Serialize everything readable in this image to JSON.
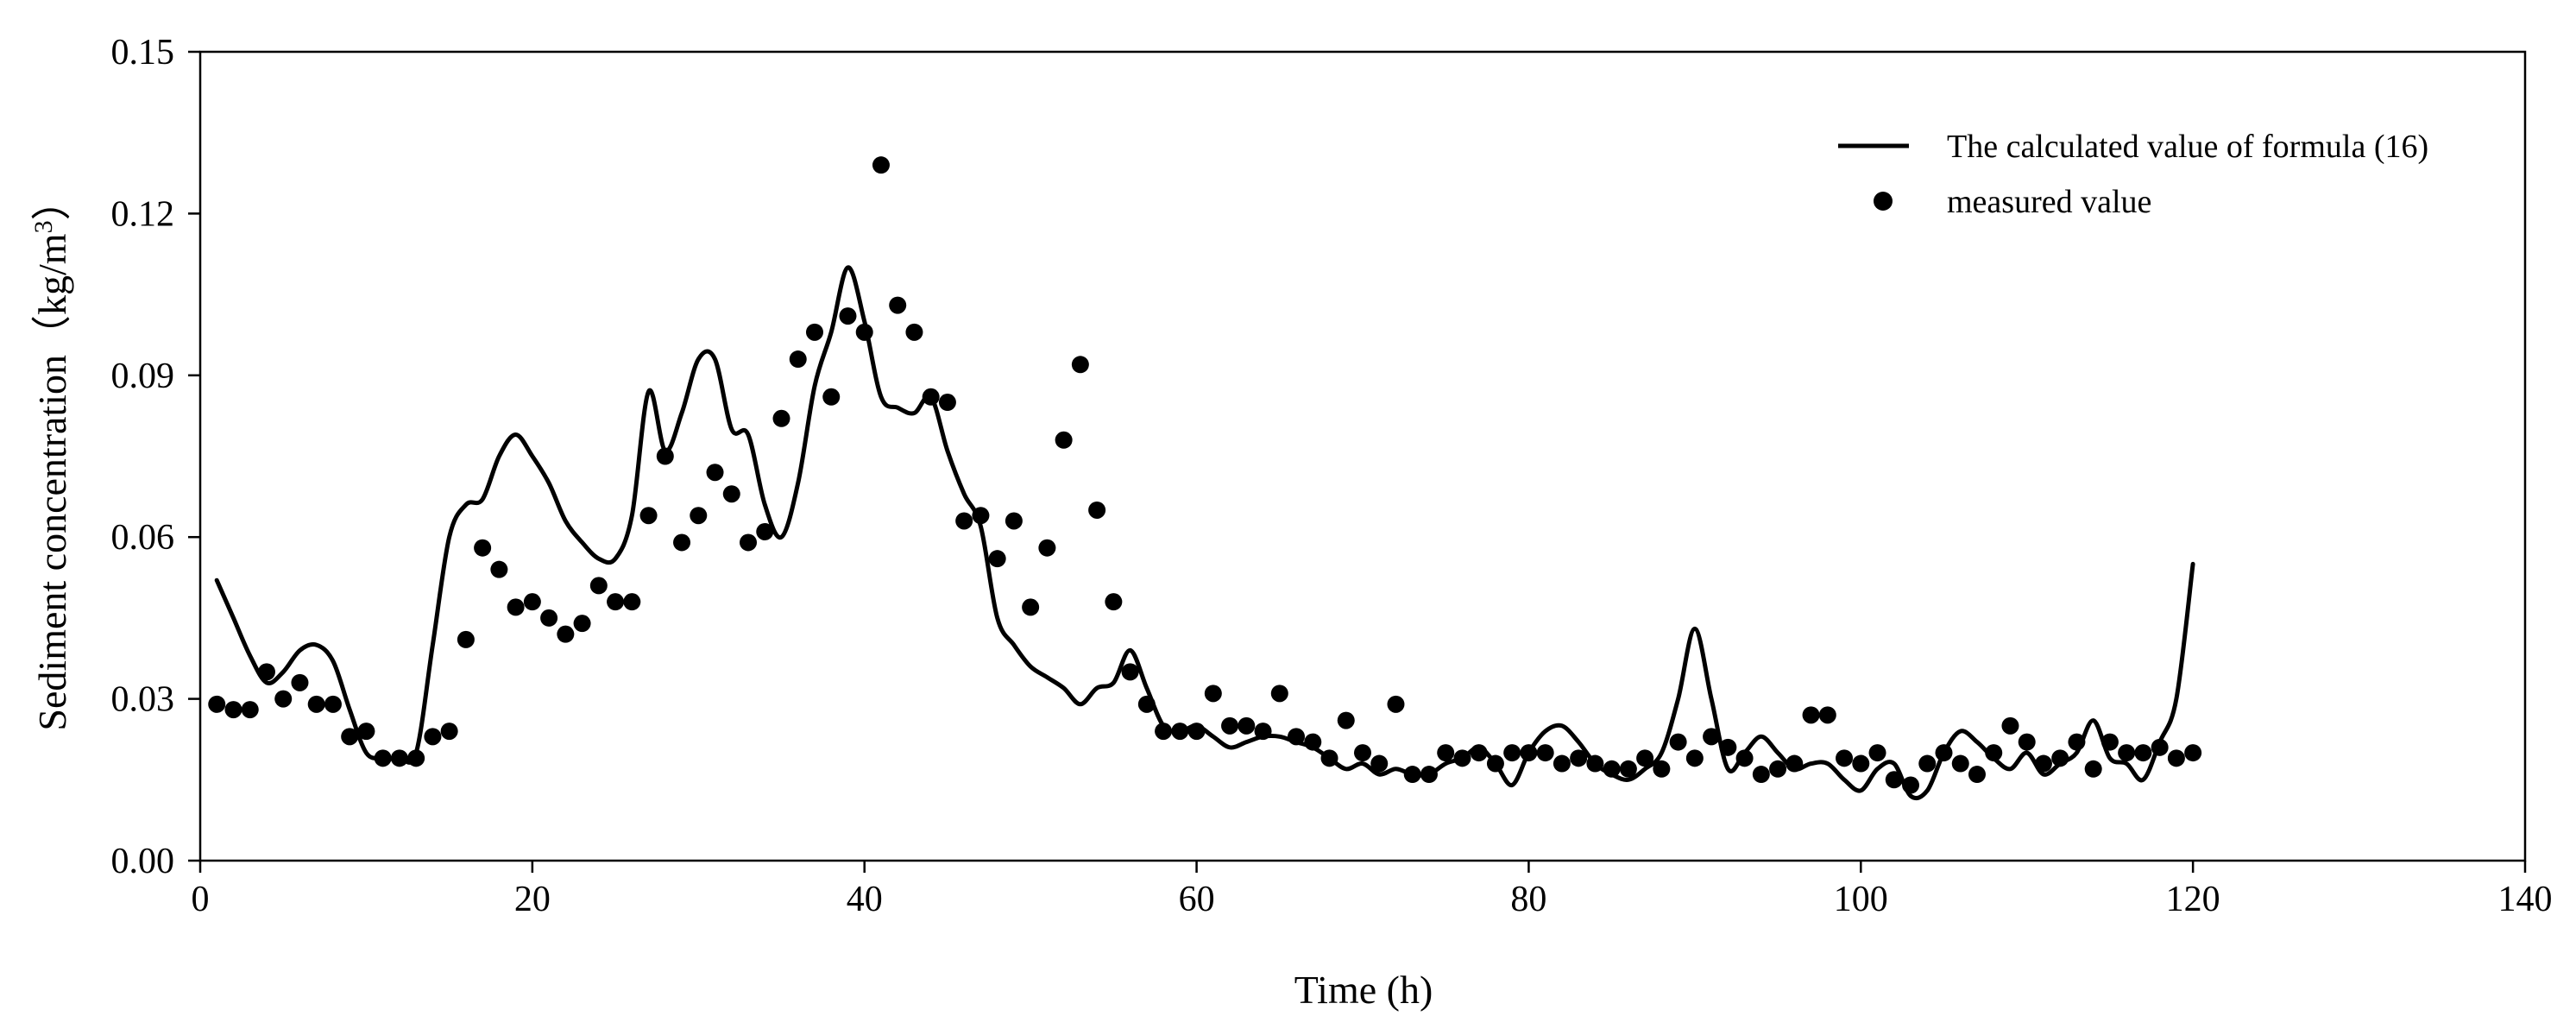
{
  "chart_data": {
    "type": "line",
    "title": "",
    "xlabel": "Time (h)",
    "ylabel": "Sediment concentration",
    "ylabel_unit_prefix": "（kg/m",
    "ylabel_unit_exp": "3",
    "ylabel_unit_suffix": "）",
    "xlim": [
      0,
      140
    ],
    "ylim": [
      0,
      0.15
    ],
    "x_ticks": [
      0,
      20,
      40,
      60,
      80,
      100,
      120,
      140
    ],
    "x_tick_labels": [
      "0",
      "20",
      "40",
      "60",
      "80",
      "100",
      "120",
      "140"
    ],
    "y_ticks": [
      0,
      0.03,
      0.06,
      0.09,
      0.12,
      0.15
    ],
    "y_tick_labels": [
      "0.00",
      "0.03",
      "0.06",
      "0.09",
      "0.12",
      "0.15"
    ],
    "grid": false,
    "legend_position": "top-right",
    "series": [
      {
        "name": "The calculated value of formula (16)",
        "style": "line",
        "color": "#000000",
        "x": [
          1,
          2,
          3,
          4,
          5,
          6,
          7,
          8,
          9,
          10,
          11,
          12,
          13,
          14,
          15,
          16,
          17,
          18,
          19,
          20,
          21,
          22,
          23,
          24,
          25,
          26,
          27,
          28,
          29,
          30,
          31,
          32,
          33,
          34,
          35,
          36,
          37,
          38,
          39,
          40,
          41,
          42,
          43,
          44,
          45,
          46,
          47,
          48,
          49,
          50,
          51,
          52,
          53,
          54,
          55,
          56,
          57,
          58,
          59,
          60,
          61,
          62,
          63,
          64,
          65,
          66,
          67,
          68,
          69,
          70,
          71,
          72,
          73,
          74,
          75,
          76,
          77,
          78,
          79,
          80,
          81,
          82,
          83,
          84,
          85,
          86,
          87,
          88,
          89,
          90,
          91,
          92,
          93,
          94,
          95,
          96,
          97,
          98,
          99,
          100,
          101,
          102,
          103,
          104,
          105,
          106,
          107,
          108,
          109,
          110,
          111,
          112,
          113,
          114,
          115,
          116,
          117,
          118,
          119,
          120
        ],
        "values": [
          0.052,
          0.045,
          0.038,
          0.033,
          0.035,
          0.039,
          0.04,
          0.037,
          0.028,
          0.02,
          0.019,
          0.019,
          0.02,
          0.04,
          0.06,
          0.066,
          0.067,
          0.075,
          0.079,
          0.075,
          0.07,
          0.063,
          0.059,
          0.056,
          0.056,
          0.064,
          0.087,
          0.076,
          0.083,
          0.093,
          0.093,
          0.08,
          0.079,
          0.066,
          0.06,
          0.07,
          0.088,
          0.098,
          0.11,
          0.1,
          0.086,
          0.084,
          0.083,
          0.086,
          0.076,
          0.068,
          0.062,
          0.045,
          0.04,
          0.036,
          0.034,
          0.032,
          0.029,
          0.032,
          0.033,
          0.039,
          0.032,
          0.025,
          0.024,
          0.025,
          0.023,
          0.021,
          0.022,
          0.023,
          0.023,
          0.022,
          0.021,
          0.019,
          0.017,
          0.018,
          0.016,
          0.017,
          0.016,
          0.016,
          0.018,
          0.019,
          0.021,
          0.018,
          0.014,
          0.02,
          0.024,
          0.025,
          0.022,
          0.018,
          0.016,
          0.015,
          0.017,
          0.02,
          0.03,
          0.043,
          0.03,
          0.017,
          0.02,
          0.023,
          0.02,
          0.017,
          0.018,
          0.018,
          0.015,
          0.013,
          0.017,
          0.018,
          0.012,
          0.013,
          0.02,
          0.024,
          0.022,
          0.019,
          0.017,
          0.02,
          0.016,
          0.018,
          0.02,
          0.026,
          0.019,
          0.018,
          0.015,
          0.022,
          0.03,
          0.055
        ]
      },
      {
        "name": "measured value",
        "style": "scatter",
        "color": "#000000",
        "x": [
          1,
          2,
          3,
          4,
          5,
          6,
          7,
          8,
          9,
          10,
          11,
          12,
          13,
          14,
          15,
          16,
          17,
          18,
          19,
          20,
          21,
          22,
          23,
          24,
          25,
          26,
          27,
          28,
          29,
          30,
          31,
          32,
          33,
          34,
          35,
          36,
          37,
          38,
          39,
          40,
          41,
          42,
          43,
          44,
          45,
          46,
          47,
          48,
          49,
          50,
          51,
          52,
          53,
          54,
          55,
          56,
          57,
          58,
          59,
          60,
          61,
          62,
          63,
          64,
          65,
          66,
          67,
          68,
          69,
          70,
          71,
          72,
          73,
          74,
          75,
          76,
          77,
          78,
          79,
          80,
          81,
          82,
          83,
          84,
          85,
          86,
          87,
          88,
          89,
          90,
          91,
          92,
          93,
          94,
          95,
          96,
          97,
          98,
          99,
          100,
          101,
          102,
          103,
          104,
          105,
          106,
          107,
          108,
          109,
          110,
          111,
          112,
          113,
          114,
          115,
          116,
          117,
          118,
          119,
          120
        ],
        "values": [
          0.029,
          0.028,
          0.028,
          0.035,
          0.03,
          0.033,
          0.029,
          0.029,
          0.023,
          0.024,
          0.019,
          0.019,
          0.019,
          0.023,
          0.024,
          0.041,
          0.058,
          0.054,
          0.047,
          0.048,
          0.045,
          0.042,
          0.044,
          0.051,
          0.048,
          0.048,
          0.064,
          0.075,
          0.059,
          0.064,
          0.072,
          0.068,
          0.059,
          0.061,
          0.082,
          0.093,
          0.098,
          0.086,
          0.101,
          0.098,
          0.129,
          0.103,
          0.098,
          0.086,
          0.085,
          0.063,
          0.064,
          0.056,
          0.063,
          0.047,
          0.058,
          0.078,
          0.092,
          0.065,
          0.048,
          0.035,
          0.029,
          0.024,
          0.024,
          0.024,
          0.031,
          0.025,
          0.025,
          0.024,
          0.031,
          0.023,
          0.022,
          0.019,
          0.026,
          0.02,
          0.018,
          0.029,
          0.016,
          0.016,
          0.02,
          0.019,
          0.02,
          0.018,
          0.02,
          0.02,
          0.02,
          0.018,
          0.019,
          0.018,
          0.017,
          0.017,
          0.019,
          0.017,
          0.022,
          0.019,
          0.023,
          0.021,
          0.019,
          0.016,
          0.017,
          0.018,
          0.027,
          0.027,
          0.019,
          0.018,
          0.02,
          0.015,
          0.014,
          0.018,
          0.02,
          0.018,
          0.016,
          0.02,
          0.025,
          0.022,
          0.018,
          0.019,
          0.022,
          0.017,
          0.022,
          0.02,
          0.02,
          0.021,
          0.019,
          0.02
        ]
      }
    ]
  }
}
